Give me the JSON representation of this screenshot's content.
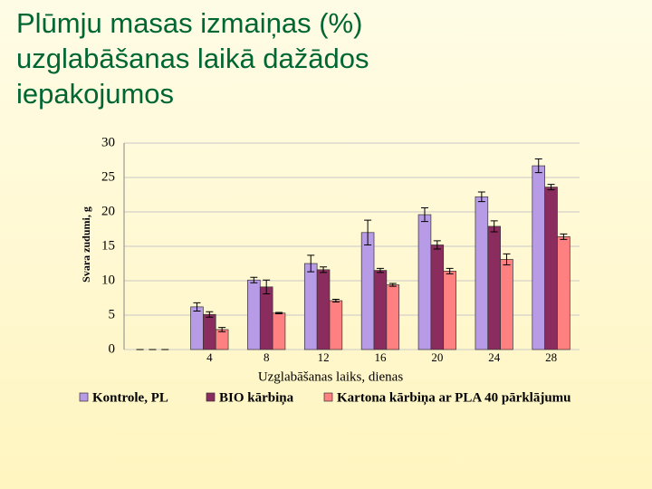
{
  "title_lines": [
    "Plūmju masas izmaiņas (%)",
    "uzglabāšanas laikā dažādos",
    "iepakojumos"
  ],
  "chart_data": {
    "type": "bar",
    "x_label": "Uzglabāšanas laiks, dienas",
    "y_label": "Svara zudumi, g",
    "categories": [
      null,
      4,
      8,
      12,
      16,
      20,
      24,
      28
    ],
    "series": [
      {
        "name": "Kontrole, PL",
        "color": "#b89be6",
        "values": [
          0,
          6.2,
          10.1,
          12.5,
          17,
          19.6,
          22.2,
          26.7
        ],
        "errors": [
          0,
          0.6,
          0.4,
          1.2,
          1.8,
          1.0,
          0.7,
          1.0
        ]
      },
      {
        "name": "BIO kārbiņa",
        "color": "#8b2c5e",
        "values": [
          0,
          5.1,
          9.1,
          11.6,
          11.5,
          15.2,
          17.9,
          23.6
        ],
        "errors": [
          0,
          0.4,
          1.0,
          0.4,
          0.3,
          0.6,
          0.8,
          0.4
        ]
      },
      {
        "name": "Kartona kārbiņa ar PLA 40 pārklājumu",
        "color": "#ff8080",
        "values": [
          0,
          2.9,
          5.3,
          7.1,
          9.4,
          11.4,
          13.1,
          16.4
        ],
        "errors": [
          0,
          0.3,
          0.1,
          0.2,
          0.2,
          0.4,
          0.8,
          0.4
        ]
      }
    ],
    "ylim": [
      0,
      30
    ],
    "yticks": [
      0,
      5,
      10,
      15,
      20,
      25,
      30
    ],
    "grid": true
  }
}
